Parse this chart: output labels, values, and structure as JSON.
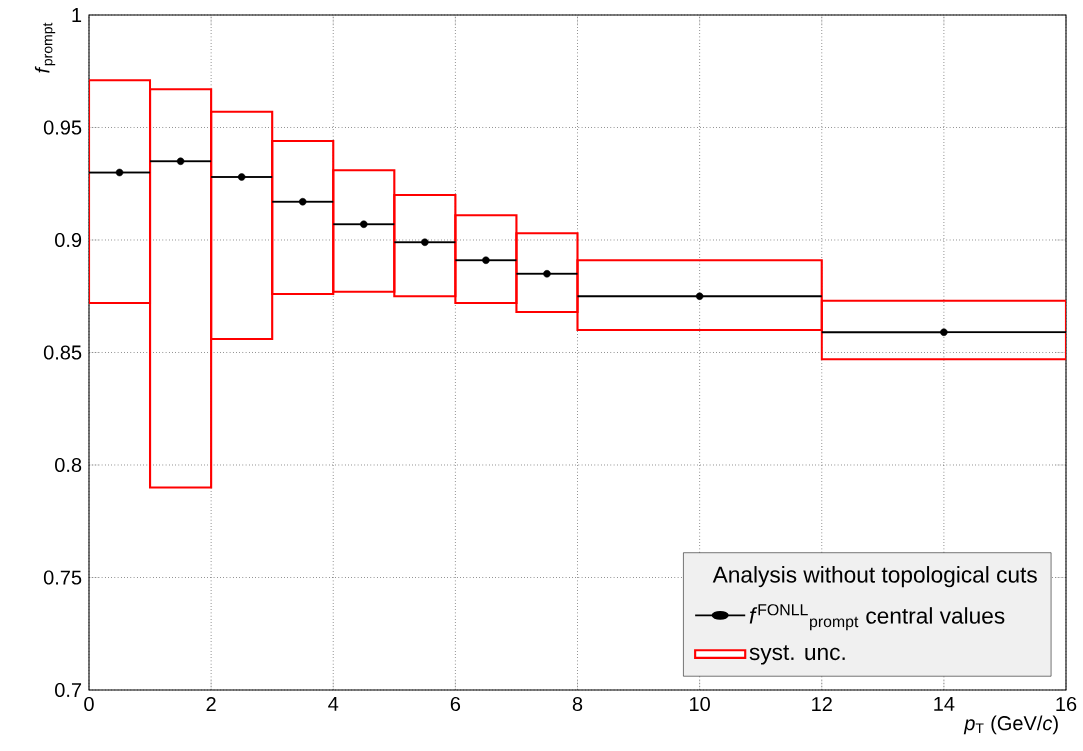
{
  "chart_data": {
    "type": "scatter",
    "xlabel": "*p*$_{T}$ (GeV/*c*)",
    "ylabel": "*f*$_{prompt}$",
    "legend_title": "Analysis without topological cuts",
    "xlim": [
      0,
      16
    ],
    "ylim": [
      0.7,
      1
    ],
    "xticks": [
      0,
      2,
      4,
      6,
      8,
      10,
      12,
      14,
      16
    ],
    "yticks": [
      0.7,
      0.75,
      0.8,
      0.85,
      0.9,
      0.95,
      1
    ],
    "grid": true,
    "legend": "bottom right",
    "marker": "circle",
    "series": [
      {
        "type": "bar",
        "name": "syst. unc.",
        "color": "#ff0000",
        "x": [
          0.5,
          1.5,
          2.5,
          3.5,
          4.5,
          5.5,
          6.5,
          7.5,
          10,
          14
        ],
        "base": [
          0.872,
          0.79,
          0.856,
          0.876,
          0.877,
          0.875,
          0.872,
          0.868,
          0.86,
          0.847
        ],
        "values": [
          0.099,
          0.177,
          0.101,
          0.068,
          0.054,
          0.045,
          0.039,
          0.035,
          0.031,
          0.026
        ]
      },
      {
        "name": "*f*$^{FONLL}$$_{prompt}$ central values",
        "color": "#000000",
        "x": [
          0.5,
          1.5,
          2.5,
          3.5,
          4.5,
          5.5,
          6.5,
          7.5,
          10,
          14
        ],
        "xerrors": [
          0.5,
          0.5,
          0.5,
          0.5,
          0.5,
          0.5,
          0.5,
          0.5,
          2,
          2
        ],
        "values": [
          0.93,
          0.935,
          0.928,
          0.917,
          0.907,
          0.899,
          0.891,
          0.885,
          0.875,
          0.859
        ]
      }
    ]
  }
}
